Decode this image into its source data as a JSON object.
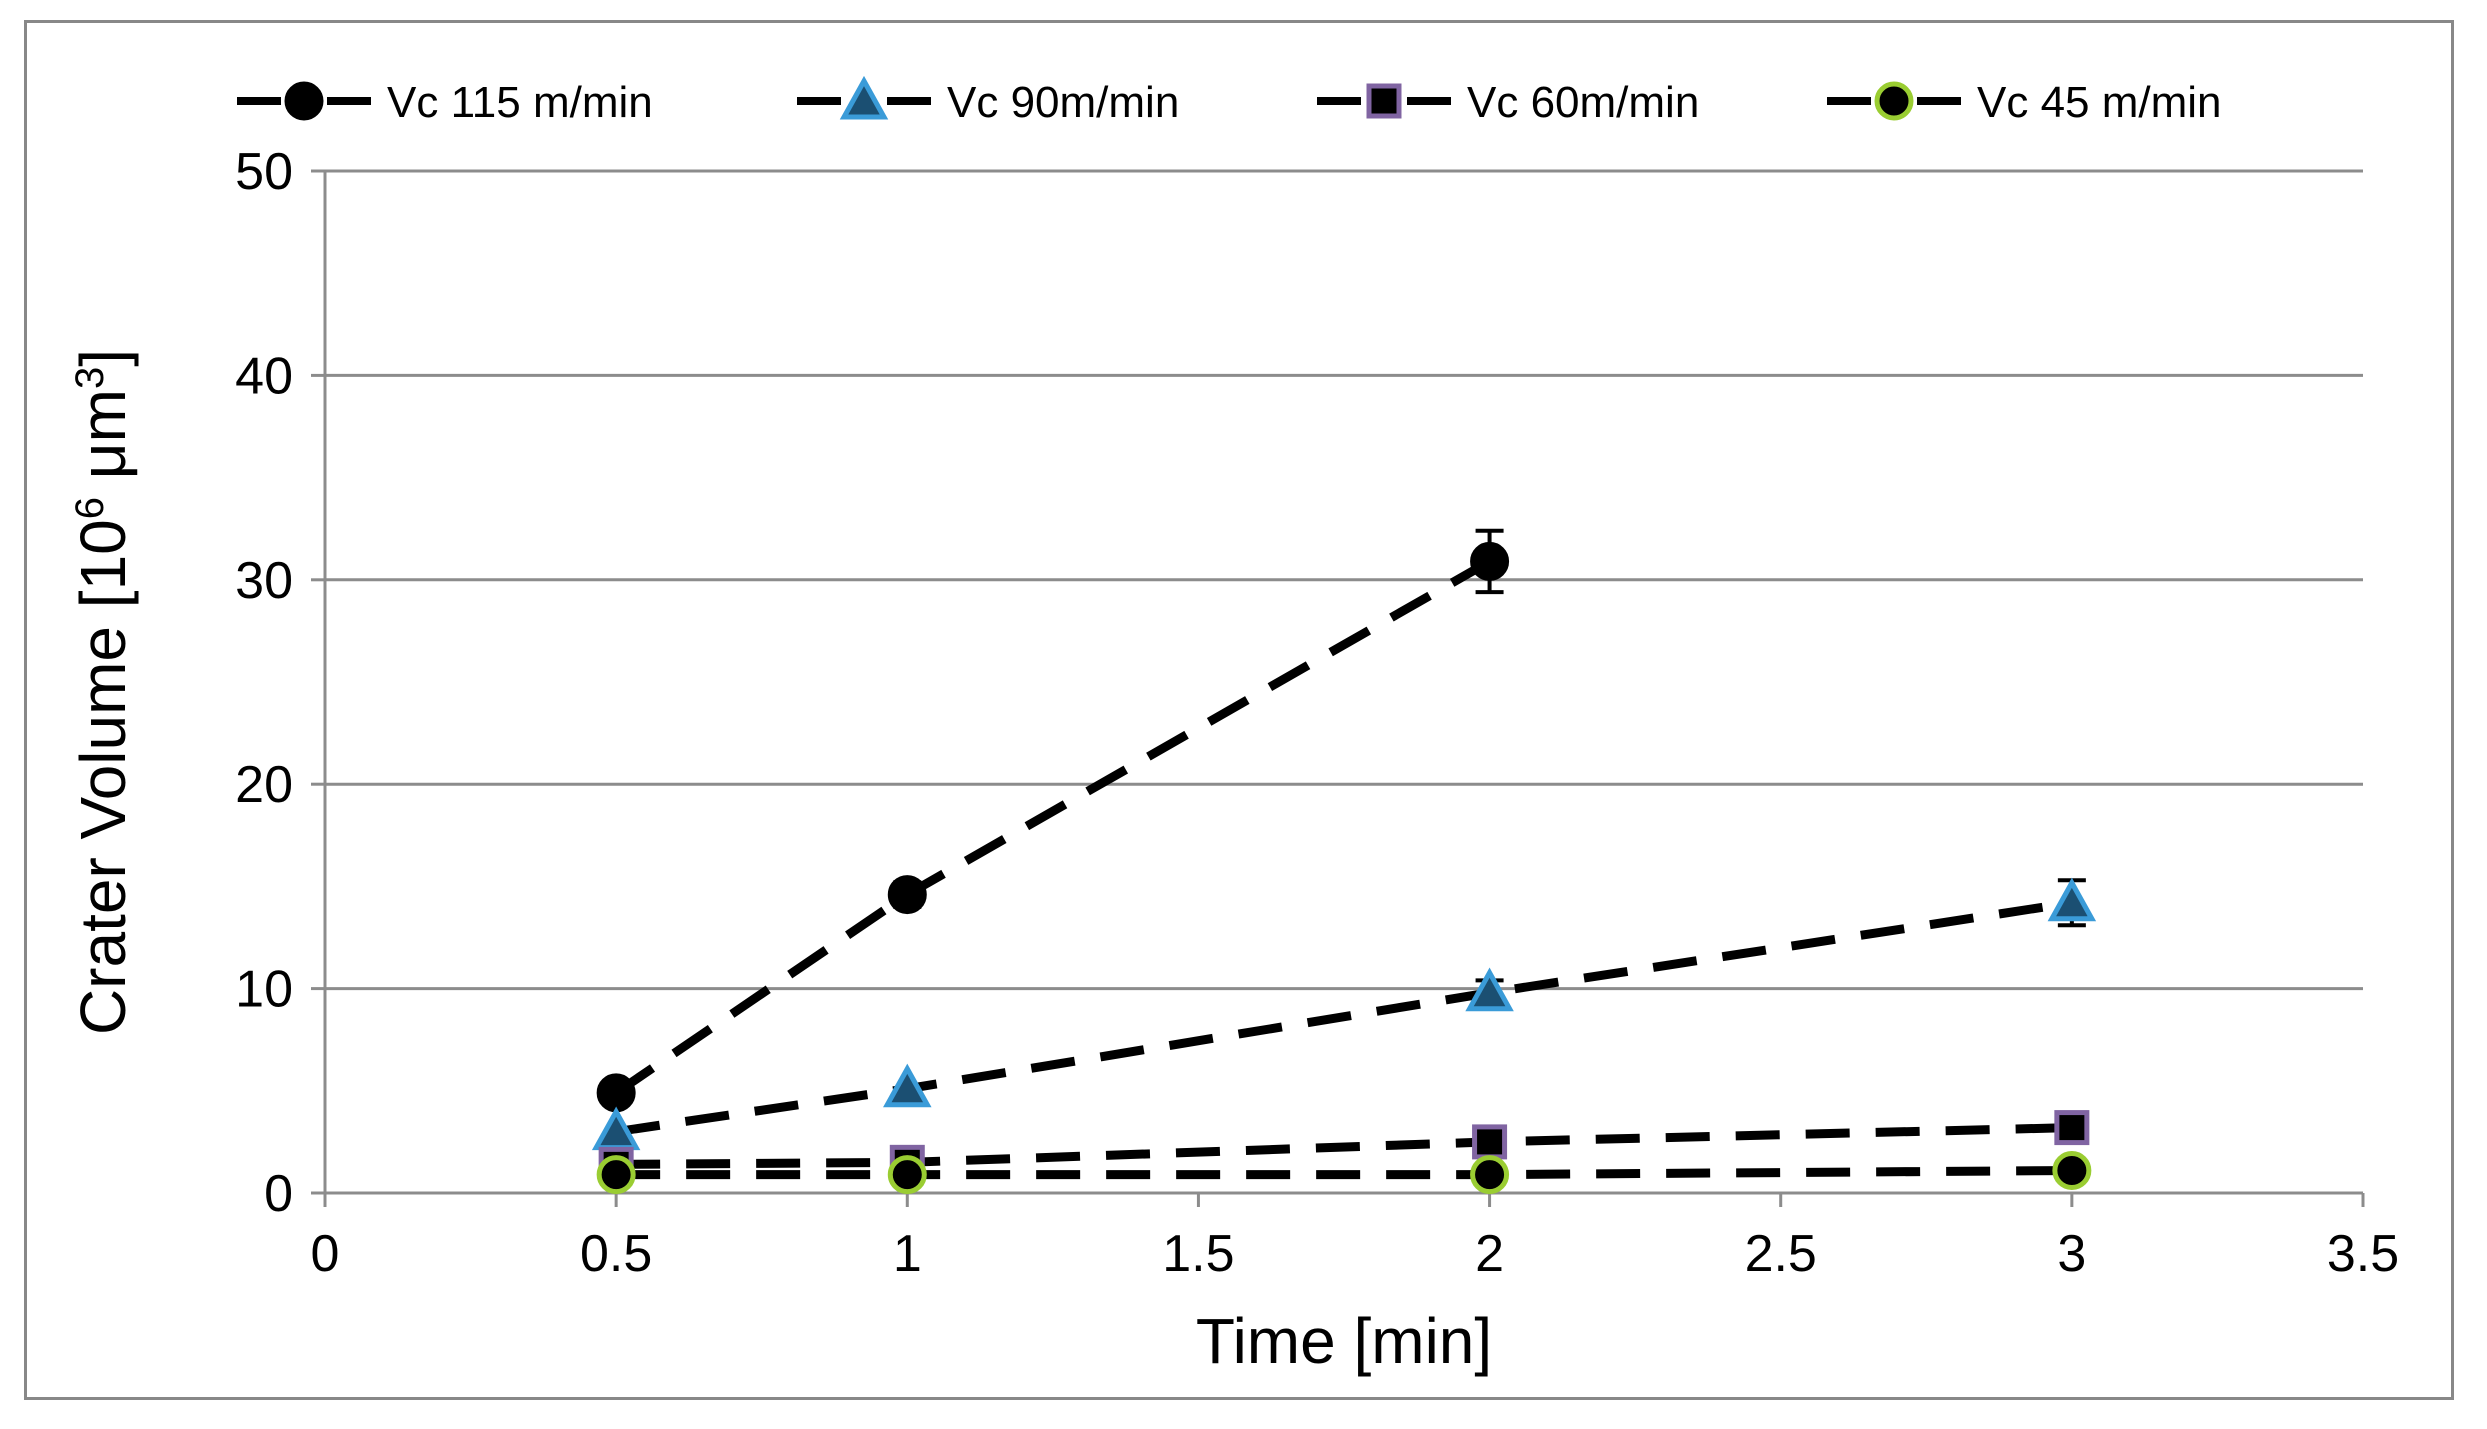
{
  "chart_data": {
    "type": "line",
    "title": "",
    "xlabel": "Time [min]",
    "ylabel_main": "Crater Volume [10",
    "ylabel_sup1": "6",
    "ylabel_mid": " μm",
    "ylabel_sup2": "3",
    "ylabel_end": "]",
    "xlim": [
      0,
      3.5
    ],
    "ylim": [
      0,
      50
    ],
    "xticks": [
      "0",
      "0.5",
      "1",
      "1.5",
      "2",
      "2.5",
      "3",
      "3.5"
    ],
    "yticks": [
      "0",
      "10",
      "20",
      "30",
      "40",
      "50"
    ],
    "grid": true,
    "legend_position": "top",
    "series": [
      {
        "name": "Vc 115 m/min",
        "marker": "circle",
        "marker_fill": "#000000",
        "marker_stroke": "#000000",
        "x": [
          0.5,
          1,
          2
        ],
        "y": [
          4.9,
          14.6,
          30.9
        ],
        "err": [
          0,
          0.6,
          1.5
        ]
      },
      {
        "name": "Vc 90m/min",
        "marker": "triangle",
        "marker_fill": "#1b4f72",
        "marker_stroke": "#3a9bd8",
        "x": [
          0.5,
          1,
          2,
          3
        ],
        "y": [
          3.0,
          5.1,
          9.8,
          14.2
        ],
        "err": [
          0,
          0,
          0.6,
          1.1
        ]
      },
      {
        "name": "Vc 60m/min",
        "marker": "square",
        "marker_fill": "#000000",
        "marker_stroke": "#8064a2",
        "x": [
          0.5,
          1,
          2,
          3
        ],
        "y": [
          1.4,
          1.5,
          2.5,
          3.2
        ],
        "err": [
          0,
          0,
          0,
          0
        ]
      },
      {
        "name": "Vc 45 m/min",
        "marker": "circle",
        "marker_fill": "#000000",
        "marker_stroke": "#9acd32",
        "x": [
          0.5,
          1,
          2,
          3
        ],
        "y": [
          0.9,
          0.9,
          0.9,
          1.1
        ],
        "err": [
          0,
          0,
          0,
          0
        ]
      }
    ]
  }
}
